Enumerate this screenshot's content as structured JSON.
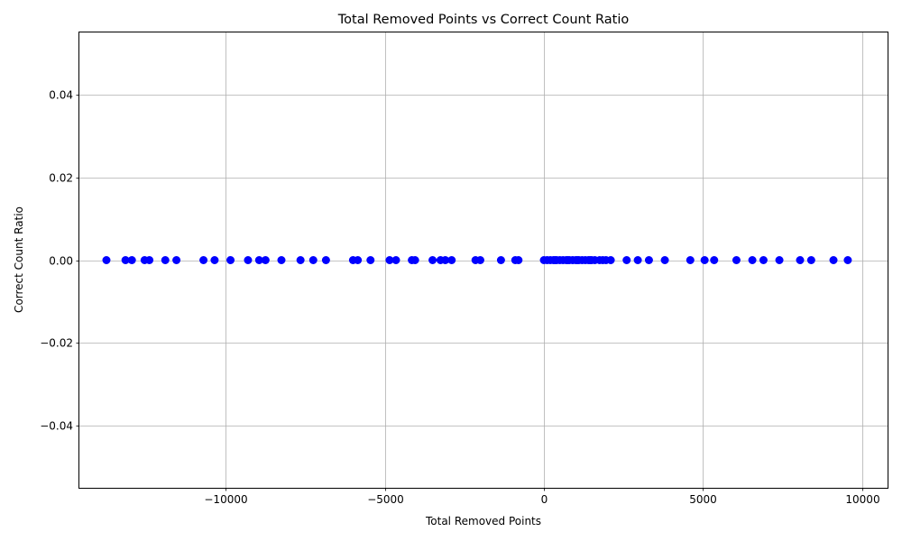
{
  "chart_data": {
    "type": "scatter",
    "title": "Total Removed Points vs Correct Count Ratio",
    "xlabel": "Total Removed Points",
    "ylabel": "Correct Count Ratio",
    "xlim": [
      -14600,
      10800
    ],
    "ylim": [
      -0.055,
      0.055
    ],
    "xticks": [
      -10000,
      -5000,
      0,
      5000,
      10000
    ],
    "xtick_labels": [
      "−10000",
      "−5000",
      "0",
      "5000",
      "10000"
    ],
    "yticks": [
      -0.04,
      -0.02,
      0.0,
      0.02,
      0.04
    ],
    "ytick_labels": [
      "−0.04",
      "−0.02",
      "0.00",
      "0.02",
      "0.04"
    ],
    "grid": true,
    "marker_color": "#0000ff",
    "x": [
      -13750,
      -13150,
      -12950,
      -12550,
      -12400,
      -11900,
      -11550,
      -10700,
      -10350,
      -9850,
      -9300,
      -8950,
      -8750,
      -8250,
      -7650,
      -7250,
      -6850,
      -6000,
      -5850,
      -5450,
      -4850,
      -4650,
      -4150,
      -4050,
      -3500,
      -3250,
      -3100,
      -2900,
      -2150,
      -2000,
      -1350,
      -900,
      -800,
      0,
      100,
      200,
      300,
      350,
      400,
      500,
      600,
      700,
      750,
      800,
      900,
      1000,
      1050,
      1100,
      1200,
      1300,
      1400,
      1450,
      1500,
      1600,
      1750,
      1850,
      1950,
      2100,
      2600,
      2950,
      3300,
      3800,
      4600,
      5050,
      5350,
      6050,
      6550,
      6900,
      7400,
      8050,
      8400,
      9100,
      9550
    ],
    "y": [
      0,
      0,
      0,
      0,
      0,
      0,
      0,
      0,
      0,
      0,
      0,
      0,
      0,
      0,
      0,
      0,
      0,
      0,
      0,
      0,
      0,
      0,
      0,
      0,
      0,
      0,
      0,
      0,
      0,
      0,
      0,
      0,
      0,
      0,
      0,
      0,
      0,
      0,
      0,
      0,
      0,
      0,
      0,
      0,
      0,
      0,
      0,
      0,
      0,
      0,
      0,
      0,
      0,
      0,
      0,
      0,
      0,
      0,
      0,
      0,
      0,
      0,
      0,
      0,
      0,
      0,
      0,
      0,
      0,
      0,
      0,
      0,
      0
    ]
  }
}
